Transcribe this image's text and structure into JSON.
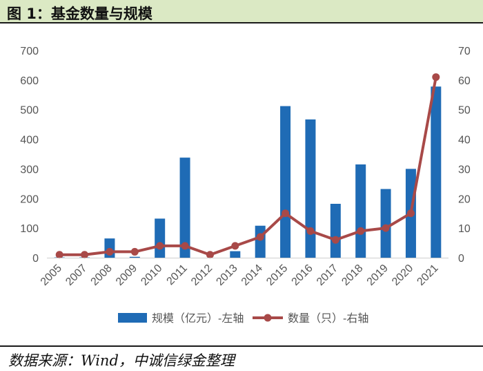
{
  "header": {
    "title": "图 1：基金数量与规模"
  },
  "footer": {
    "source": "数据来源：Wind，中诚信绿金整理"
  },
  "chart_data": {
    "type": "bar",
    "categories": [
      "2005",
      "2007",
      "2008",
      "2009",
      "2010",
      "2011",
      "2012",
      "2013",
      "2014",
      "2015",
      "2016",
      "2017",
      "2018",
      "2019",
      "2020",
      "2021"
    ],
    "series": [
      {
        "name": "规模（亿元）-左轴",
        "type": "bar",
        "axis": "left",
        "color": "#1f6bb5",
        "values": [
          1,
          1,
          65,
          3,
          132,
          338,
          0,
          22,
          108,
          512,
          467,
          182,
          315,
          232,
          300,
          578
        ]
      },
      {
        "name": "数量（只）-右轴",
        "type": "line",
        "axis": "right",
        "color": "#a84948",
        "values": [
          1,
          1,
          2,
          2,
          4,
          4,
          1,
          4,
          7,
          15,
          9,
          6,
          9,
          10,
          15,
          61
        ]
      }
    ],
    "left_axis": {
      "min": 0,
      "max": 700,
      "ticks": [
        "0",
        "100",
        "200",
        "300",
        "400",
        "500",
        "600",
        "700"
      ]
    },
    "right_axis": {
      "min": 0,
      "max": 70,
      "ticks": [
        "0",
        "10",
        "20",
        "30",
        "40",
        "50",
        "60",
        "70"
      ]
    },
    "grid": false,
    "legend_position": "bottom"
  }
}
